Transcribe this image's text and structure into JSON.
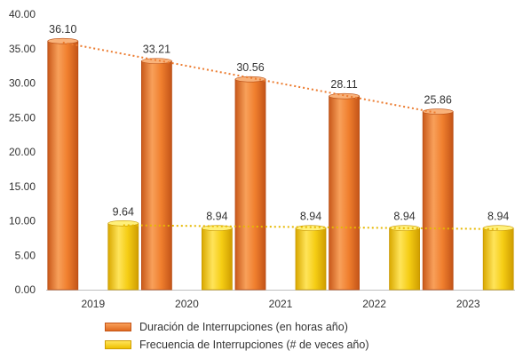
{
  "chart_data": {
    "type": "bar",
    "categories": [
      "2019",
      "2020",
      "2021",
      "2022",
      "2023"
    ],
    "series": [
      {
        "name": "Duración de Interrupciones (en horas año)",
        "values": [
          36.1,
          33.21,
          30.56,
          28.11,
          25.86
        ],
        "value_labels": [
          "36.10",
          "33.21",
          "30.56",
          "28.11",
          "25.86"
        ],
        "color": "#f07f2e"
      },
      {
        "name": "Frecuencia de Interrupciones (# de veces año)",
        "values": [
          9.64,
          8.94,
          8.94,
          8.94,
          8.94
        ],
        "value_labels": [
          "9.64",
          "8.94",
          "8.94",
          "8.94",
          "8.94"
        ],
        "color": "#f5cd14"
      }
    ],
    "trendlines": true,
    "ylim": [
      0,
      40
    ],
    "yticks": [
      "0.00",
      "5.00",
      "10.00",
      "15.00",
      "20.00",
      "25.00",
      "30.00",
      "35.00",
      "40.00"
    ],
    "grid": false,
    "legend": "bottom",
    "title": "",
    "xlabel": "",
    "ylabel": ""
  }
}
